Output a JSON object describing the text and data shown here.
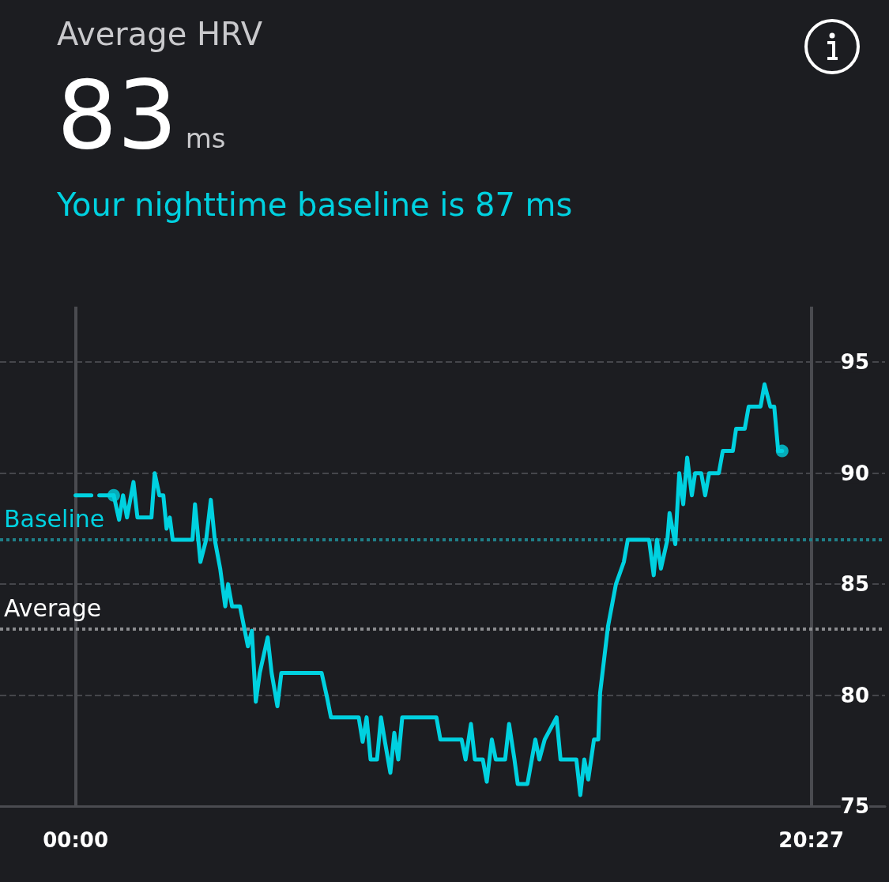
{
  "chart_data": {
    "type": "line",
    "title": "Average HRV",
    "subtitle": "Your nighttime baseline is 87 ms",
    "annotations": [
      "83",
      "ms"
    ],
    "xlim": [
      -2.1,
      22.5
    ],
    "xticks": [
      {
        "value": 0,
        "label": "00:00"
      },
      {
        "value": 20.45,
        "label": "20:27"
      }
    ],
    "ylim": [
      75,
      97.5
    ],
    "yticks": [
      75,
      80,
      85,
      90,
      95
    ],
    "grid": true,
    "series": [
      {
        "color": "#00d1e0",
        "line_style": "dashed",
        "x": [
          0,
          1.06
        ],
        "values": [
          89.0,
          89.0
        ]
      },
      {
        "type": "scatter",
        "color": "#00d1e0",
        "marker": "circle",
        "x": [
          1.06,
          19.64
        ],
        "values": [
          89.0,
          91.0
        ]
      },
      {
        "color": "#00d1e0",
        "line_style": "solid",
        "x": [
          1.06,
          1.21,
          1.32,
          1.43,
          1.61,
          1.72,
          2.11,
          2.2,
          2.33,
          2.44,
          2.53,
          2.62,
          2.7,
          3.25,
          3.32,
          3.47,
          3.63,
          3.76,
          3.87,
          4.02,
          4.16,
          4.24,
          4.35,
          4.57,
          4.79,
          4.9,
          5.01,
          5.12,
          5.34,
          5.45,
          5.61,
          5.72,
          6.84,
          6.99,
          7.1,
          7.87,
          7.98,
          8.09,
          8.2,
          8.38,
          8.49,
          8.6,
          8.75,
          8.86,
          8.97,
          9.08,
          10.03,
          10.14,
          10.73,
          10.84,
          10.99,
          11.1,
          11.32,
          11.43,
          11.57,
          11.68,
          11.94,
          12.05,
          12.2,
          12.29,
          12.56,
          12.78,
          12.89,
          13.04,
          13.37,
          13.48,
          13.92,
          14.03,
          14.14,
          14.25,
          14.41,
          14.53,
          14.58,
          14.8,
          15.02,
          15.24,
          15.35,
          15.94,
          16.07,
          16.16,
          16.27,
          16.45,
          16.51,
          16.67,
          16.78,
          16.89,
          17.0,
          17.13,
          17.22,
          17.39,
          17.5,
          17.61,
          17.88,
          17.99,
          18.27,
          18.36,
          18.6,
          18.71,
          19.04,
          19.15,
          19.31,
          19.42,
          19.53,
          19.64
        ],
        "values": [
          89.0,
          87.9,
          89.0,
          88.0,
          89.6,
          88.0,
          88.0,
          90.0,
          89.0,
          89.0,
          87.5,
          88.0,
          87.0,
          87.0,
          88.6,
          86.0,
          87.0,
          88.8,
          87.0,
          85.7,
          84.0,
          85.0,
          84.0,
          84.0,
          82.2,
          82.9,
          79.7,
          81.0,
          82.6,
          81.0,
          79.5,
          81.0,
          81.0,
          79.9,
          79.0,
          79.0,
          77.9,
          79.0,
          77.1,
          77.1,
          79.0,
          77.9,
          76.5,
          78.3,
          77.1,
          79.0,
          79.0,
          78.0,
          78.0,
          77.1,
          78.7,
          77.1,
          77.1,
          76.1,
          78.0,
          77.1,
          77.1,
          78.7,
          77.1,
          76.0,
          76.0,
          78.0,
          77.1,
          78.0,
          79.0,
          77.1,
          77.1,
          75.5,
          77.1,
          76.2,
          78.0,
          78.0,
          80.1,
          83.1,
          85.0,
          86.0,
          87.0,
          87.0,
          85.4,
          87.0,
          85.7,
          87.0,
          88.2,
          86.8,
          90.0,
          88.6,
          90.7,
          89.0,
          90.0,
          90.0,
          89.0,
          90.0,
          90.0,
          91.0,
          91.0,
          92.0,
          92.0,
          93.0,
          93.0,
          94.0,
          93.0,
          93.0,
          91.0,
          91.0
        ]
      }
    ],
    "ref_lines": [
      {
        "axis": "y",
        "value": 87,
        "label": "Baseline",
        "color": "#1f7f88",
        "line_style": "dotted"
      },
      {
        "axis": "y",
        "value": 83,
        "label": "Average",
        "color": "#8a8b8e",
        "line_style": "dotted"
      }
    ]
  }
}
